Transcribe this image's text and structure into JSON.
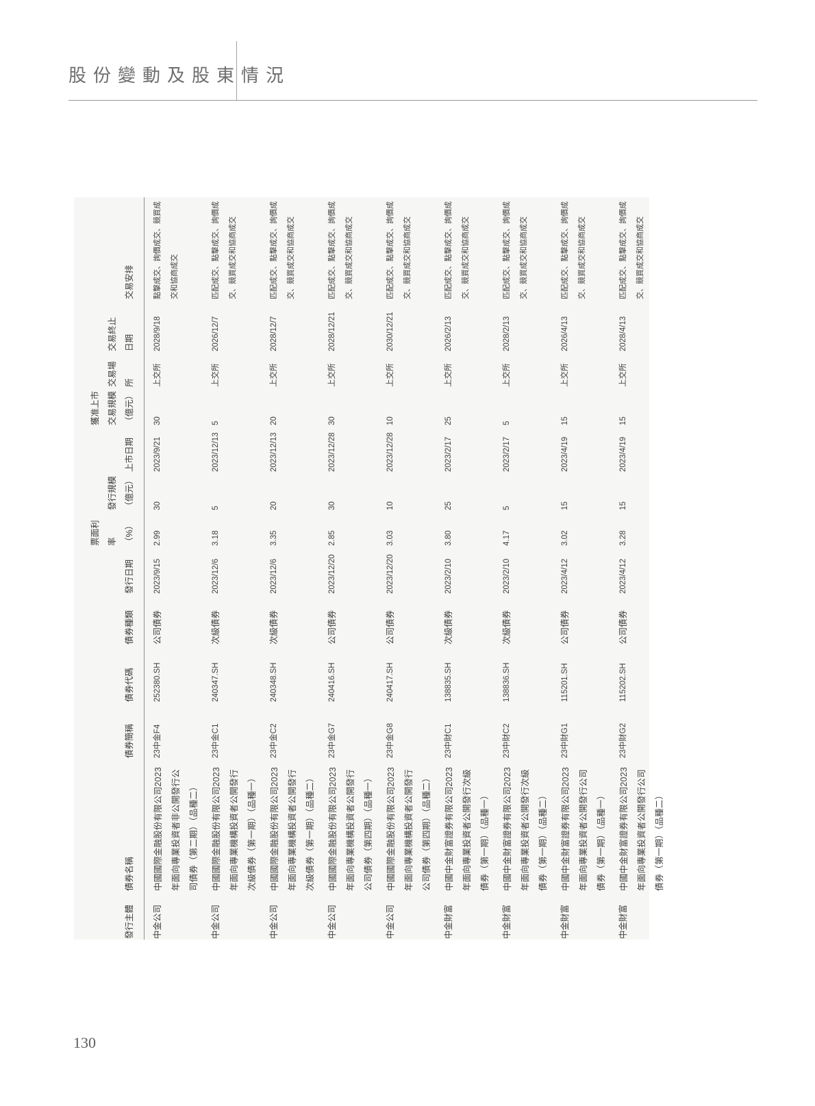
{
  "page": {
    "section_title": "股份變動及股東情況",
    "page_number": "130"
  },
  "table": {
    "headers": [
      {
        "key": "issuer",
        "label": "發行主體"
      },
      {
        "key": "bond_name",
        "label": "債券名稱"
      },
      {
        "key": "short_name",
        "label": "債券簡稱"
      },
      {
        "key": "code",
        "label": "債券代碼"
      },
      {
        "key": "type",
        "label": "債券種類"
      },
      {
        "key": "issue_date",
        "label": "發行日期"
      },
      {
        "key": "coupon_rate",
        "label": "票面利率\n（%）"
      },
      {
        "key": "issue_size",
        "label": "發行規模\n（億元）"
      },
      {
        "key": "listing_date",
        "label": "上市日期"
      },
      {
        "key": "approved_size",
        "label": "獲准上市\n交易規模\n（億元）"
      },
      {
        "key": "venue",
        "label": "交易場所"
      },
      {
        "key": "end_date",
        "label": "交易終止\n日期"
      },
      {
        "key": "arrangement",
        "label": "交易安排"
      }
    ],
    "rows": [
      {
        "cells": [
          "中金公司",
          "中國國際金融股份有限公司2023\n年面向專業投資者非公開發行公\n司債券（第二期）（品種二）",
          "23中金F4",
          "252380.SH",
          "公司債券",
          "2023/9/15",
          "2.99",
          "30",
          "2023/9/21",
          "30",
          "上交所",
          "2028/9/18",
          "點擊成交、詢價成交、競買成\n交和協商成交"
        ]
      },
      {
        "cells": [
          "中金公司",
          "中國國際金融股份有限公司2023\n年面向專業機構投資者公開發行\n次級債券（第一期）（品種一）",
          "23中金C1",
          "240347.SH",
          "次級債券",
          "2023/12/6",
          "3.18",
          "5",
          "2023/12/13",
          "5",
          "上交所",
          "2026/12/7",
          "匹配成交、點擊成交、詢價成\n交、競買成交和協商成交"
        ]
      },
      {
        "cells": [
          "中金公司",
          "中國國際金融股份有限公司2023\n年面向專業機構投資者公開發行\n次級債券（第一期）（品種二）",
          "23中金C2",
          "240348.SH",
          "次級債券",
          "2023/12/6",
          "3.35",
          "20",
          "2023/12/13",
          "20",
          "上交所",
          "2028/12/7",
          "匹配成交、點擊成交、詢價成\n交、競買成交和協商成交"
        ]
      },
      {
        "cells": [
          "中金公司",
          "中國國際金融股份有限公司2023\n年面向專業機構投資者公開發行\n公司債券（第四期）（品種一）",
          "23中金G7",
          "240416.SH",
          "公司債券",
          "2023/12/20",
          "2.85",
          "30",
          "2023/12/28",
          "30",
          "上交所",
          "2028/12/21",
          "匹配成交、點擊成交、詢價成\n交、競買成交和協商成交"
        ]
      },
      {
        "cells": [
          "中金公司",
          "中國國際金融股份有限公司2023\n年面向專業機構投資者公開發行\n公司債券（第四期）（品種二）",
          "23中金G8",
          "240417.SH",
          "公司債券",
          "2023/12/20",
          "3.03",
          "10",
          "2023/12/28",
          "10",
          "上交所",
          "2030/12/21",
          "匹配成交、點擊成交、詢價成\n交、競買成交和協商成交"
        ]
      },
      {
        "cells": [
          "中金財富",
          "中國中金財富證券有限公司2023\n年面向專業投資者公開發行次級\n債券（第一期）（品種一）",
          "23中財C1",
          "138835.SH",
          "次級債券",
          "2023/2/10",
          "3.80",
          "25",
          "2023/2/17",
          "25",
          "上交所",
          "2026/2/13",
          "匹配成交、點擊成交、詢價成\n交、競買成交和協商成交"
        ]
      },
      {
        "cells": [
          "中金財富",
          "中國中金財富證券有限公司2023\n年面向專業投資者公開發行次級\n債券（第一期）（品種二）",
          "23中財C2",
          "138836.SH",
          "次級債券",
          "2023/2/10",
          "4.17",
          "5",
          "2023/2/17",
          "5",
          "上交所",
          "2028/2/13",
          "匹配成交、點擊成交、詢價成\n交、競買成交和協商成交"
        ]
      },
      {
        "cells": [
          "中金財富",
          "中國中金財富證券有限公司2023\n年面向專業投資者公開發行公司\n債券（第一期）（品種一）",
          "23中財G1",
          "115201.SH",
          "公司債券",
          "2023/4/12",
          "3.02",
          "15",
          "2023/4/19",
          "15",
          "上交所",
          "2026/4/13",
          "匹配成交、點擊成交、詢價成\n交、競買成交和協商成交"
        ]
      },
      {
        "cells": [
          "中金財富",
          "中國中金財富證券有限公司2023\n年面向專業投資者公開發行公司\n債券（第一期）（品種二）",
          "23中財G2",
          "115202.SH",
          "公司債券",
          "2023/4/12",
          "3.28",
          "15",
          "2023/4/19",
          "15",
          "上交所",
          "2028/4/13",
          "匹配成交、點擊成交、詢價成\n交、競買成交和協商成交"
        ]
      }
    ]
  }
}
